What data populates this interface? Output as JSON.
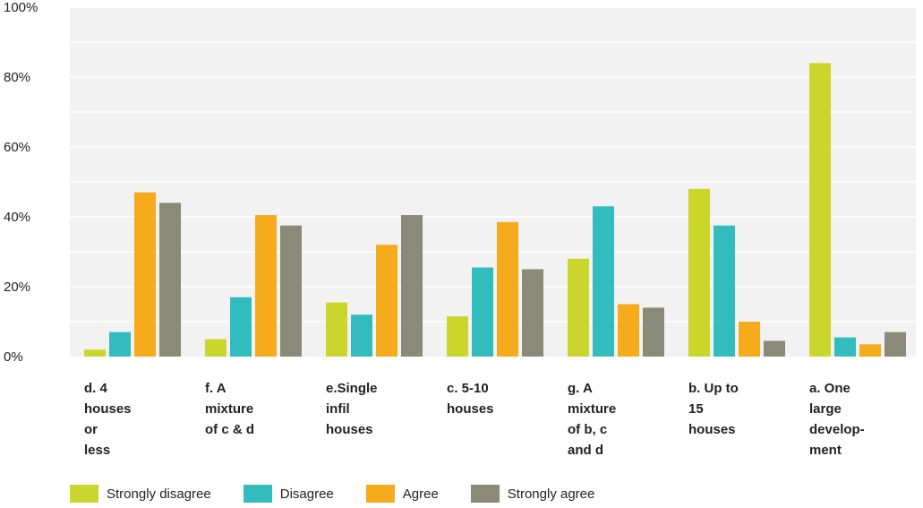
{
  "chart_data": {
    "type": "bar",
    "title": "",
    "xlabel": "",
    "ylabel": "",
    "ylim": [
      0,
      100
    ],
    "yticks": [
      "0%",
      "20%",
      "40%",
      "60%",
      "80%",
      "100%"
    ],
    "ytick_values": [
      0,
      20,
      40,
      60,
      80,
      100
    ],
    "grid": true,
    "legend_position": "bottom",
    "categories": [
      [
        "d. 4",
        "houses",
        "or",
        "less"
      ],
      [
        "f. A",
        "mixture",
        "of c & d"
      ],
      [
        "e.Single",
        "infil",
        "houses"
      ],
      [
        "c. 5-10",
        "houses"
      ],
      [
        "g. A",
        "mixture",
        "of b, c",
        "and d"
      ],
      [
        "b. Up to",
        "15",
        "houses"
      ],
      [
        "a. One",
        "large",
        "develop-",
        "ment"
      ]
    ],
    "series": [
      {
        "name": "Strongly disagree",
        "color": "#cbd62d",
        "values": [
          2,
          5,
          15.5,
          11.5,
          28,
          48,
          84
        ]
      },
      {
        "name": "Disagree",
        "color": "#32bcbe",
        "values": [
          7,
          17,
          12,
          25.5,
          43,
          37.5,
          5.5
        ]
      },
      {
        "name": "Agree",
        "color": "#f6ab1c",
        "values": [
          47,
          40.5,
          32,
          38.5,
          15,
          10,
          3.5
        ]
      },
      {
        "name": "Strongly agree",
        "color": "#8a8a78",
        "values": [
          44,
          37.5,
          40.5,
          25,
          14,
          4.5,
          7
        ]
      }
    ]
  }
}
